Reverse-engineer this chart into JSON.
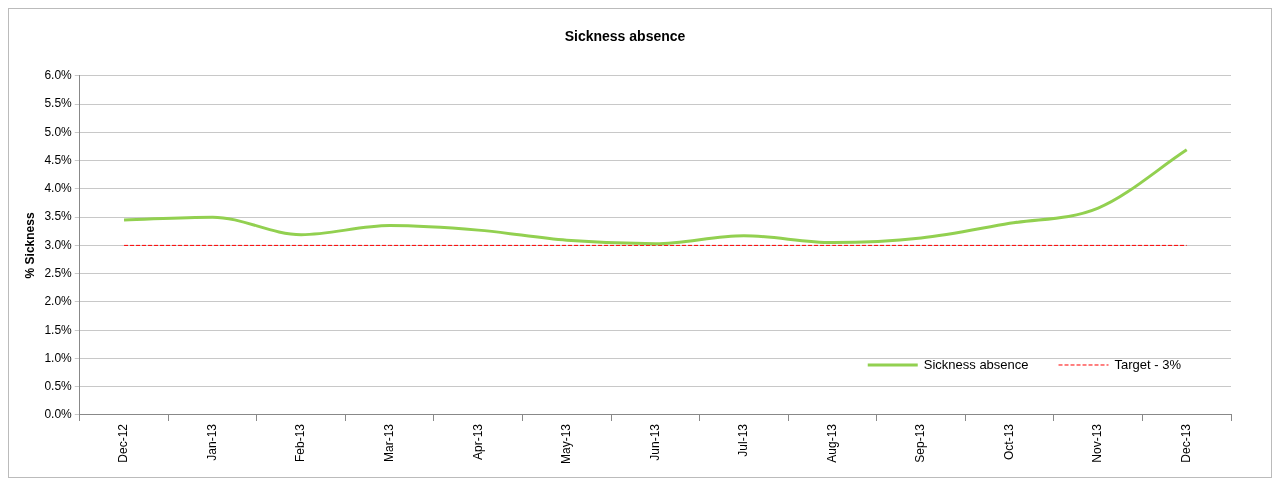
{
  "chart_data": {
    "type": "line",
    "title": "Sickness absence",
    "ylabel": "% Sickness",
    "categories": [
      "Dec-12",
      "Jan-13",
      "Feb-13",
      "Mar-13",
      "Apr-13",
      "May-13",
      "Jun-13",
      "Jul-13",
      "Aug-13",
      "Sep-13",
      "Oct-13",
      "Nov-13",
      "Dec-13"
    ],
    "series": [
      {
        "name": "Sickness absence",
        "color": "#92d050",
        "values": [
          3.45,
          3.5,
          3.19,
          3.35,
          3.27,
          3.09,
          3.03,
          3.17,
          3.05,
          3.13,
          3.39,
          3.66,
          4.69
        ],
        "line_style": "solid"
      },
      {
        "name": "Target - 3%",
        "color": "#ff0000",
        "values": [
          3,
          3,
          3,
          3,
          3,
          3,
          3,
          3,
          3,
          3,
          3,
          3,
          3
        ],
        "line_style": "dashed"
      }
    ],
    "ylim": [
      0,
      6
    ],
    "yticks": [
      {
        "value": 0,
        "label": "0.0%"
      },
      {
        "value": 0.5,
        "label": "0.5%"
      },
      {
        "value": 1,
        "label": "1.0%"
      },
      {
        "value": 1.5,
        "label": "1.5%"
      },
      {
        "value": 2,
        "label": "2.0%"
      },
      {
        "value": 2.5,
        "label": "2.5%"
      },
      {
        "value": 3,
        "label": "3.0%"
      },
      {
        "value": 3.5,
        "label": "3.5%"
      },
      {
        "value": 4,
        "label": "4.0%"
      },
      {
        "value": 4.5,
        "label": "4.5%"
      },
      {
        "value": 5,
        "label": "5.0%"
      },
      {
        "value": 5.5,
        "label": "5.5%"
      },
      {
        "value": 6,
        "label": "6.0%"
      }
    ],
    "grid": "y",
    "legend": "bottom right",
    "marker": "none"
  }
}
